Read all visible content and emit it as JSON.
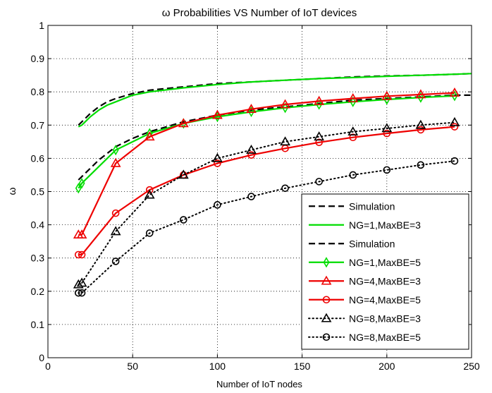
{
  "chart_data": {
    "type": "line",
    "title": "ω Probabilities VS Number of IoT devices",
    "xlabel": "Number of IoT nodes",
    "ylabel": "ω",
    "xlim": [
      0,
      250
    ],
    "ylim": [
      0,
      1
    ],
    "xticks": [
      0,
      50,
      100,
      150,
      200,
      250
    ],
    "yticks": [
      0,
      0.1,
      0.2,
      0.3,
      0.4,
      0.5,
      0.6,
      0.7,
      0.8,
      0.9,
      1
    ],
    "grid": true,
    "legend_position": "lower-right",
    "series": [
      {
        "name": "Simulation",
        "color": "#000000",
        "style": "dashed",
        "marker": "none",
        "x": [
          18,
          20,
          25,
          30,
          35,
          40,
          50,
          60,
          80,
          100,
          120,
          140,
          160,
          180,
          200,
          220,
          240,
          250
        ],
        "values": [
          0.7,
          0.71,
          0.735,
          0.755,
          0.77,
          0.78,
          0.795,
          0.805,
          0.815,
          0.825,
          0.83,
          0.835,
          0.84,
          0.845,
          0.848,
          0.85,
          0.853,
          0.855
        ]
      },
      {
        "name": "NG=1,MaxBE=3",
        "color": "#00dd00",
        "style": "solid",
        "marker": "none",
        "x": [
          18,
          20,
          25,
          30,
          35,
          40,
          50,
          60,
          80,
          100,
          120,
          140,
          160,
          180,
          200,
          220,
          240,
          250
        ],
        "values": [
          0.695,
          0.7,
          0.725,
          0.745,
          0.76,
          0.77,
          0.79,
          0.8,
          0.812,
          0.822,
          0.83,
          0.835,
          0.84,
          0.843,
          0.847,
          0.85,
          0.853,
          0.855
        ]
      },
      {
        "name": "Simulation",
        "color": "#000000",
        "style": "dashed",
        "marker": "none",
        "x": [
          18,
          20,
          30,
          40,
          50,
          60,
          80,
          100,
          120,
          140,
          160,
          180,
          200,
          220,
          240,
          250
        ],
        "values": [
          0.535,
          0.545,
          0.595,
          0.635,
          0.66,
          0.68,
          0.71,
          0.73,
          0.745,
          0.755,
          0.765,
          0.775,
          0.78,
          0.785,
          0.79,
          0.79
        ]
      },
      {
        "name": "NG=1,MaxBE=5",
        "color": "#00dd00",
        "style": "solid",
        "marker": "diamond",
        "x": [
          18,
          20,
          40,
          60,
          80,
          100,
          120,
          140,
          160,
          180,
          200,
          220,
          240
        ],
        "values": [
          0.51,
          0.525,
          0.625,
          0.675,
          0.705,
          0.725,
          0.74,
          0.752,
          0.762,
          0.77,
          0.777,
          0.783,
          0.788
        ]
      },
      {
        "name": "NG=4,MaxBE=3",
        "color": "#ee0000",
        "style": "solid",
        "marker": "triangle",
        "x": [
          18,
          20,
          40,
          60,
          80,
          100,
          120,
          140,
          160,
          180,
          200,
          220,
          240
        ],
        "values": [
          0.37,
          0.37,
          0.585,
          0.665,
          0.705,
          0.73,
          0.748,
          0.762,
          0.772,
          0.78,
          0.787,
          0.792,
          0.797
        ]
      },
      {
        "name": "NG=4,MaxBE=5",
        "color": "#ee0000",
        "style": "solid",
        "marker": "circle",
        "x": [
          18,
          20,
          40,
          60,
          80,
          100,
          120,
          140,
          160,
          180,
          200,
          220,
          240
        ],
        "values": [
          0.31,
          0.31,
          0.435,
          0.505,
          0.55,
          0.585,
          0.61,
          0.63,
          0.648,
          0.663,
          0.675,
          0.686,
          0.695
        ]
      },
      {
        "name": "NG=8,MaxBE=3",
        "color": "#000000",
        "style": "dotted",
        "marker": "triangle",
        "x": [
          18,
          20,
          40,
          60,
          80,
          100,
          120,
          140,
          160,
          180,
          200,
          220,
          240
        ],
        "values": [
          0.22,
          0.225,
          0.38,
          0.49,
          0.55,
          0.6,
          0.625,
          0.65,
          0.665,
          0.68,
          0.69,
          0.7,
          0.708
        ]
      },
      {
        "name": "NG=8,MaxBE=5",
        "color": "#000000",
        "style": "dotted",
        "marker": "circle",
        "x": [
          18,
          20,
          40,
          60,
          80,
          100,
          120,
          140,
          160,
          180,
          200,
          220,
          240
        ],
        "values": [
          0.195,
          0.195,
          0.29,
          0.375,
          0.415,
          0.46,
          0.485,
          0.51,
          0.53,
          0.55,
          0.565,
          0.58,
          0.592
        ]
      }
    ]
  }
}
